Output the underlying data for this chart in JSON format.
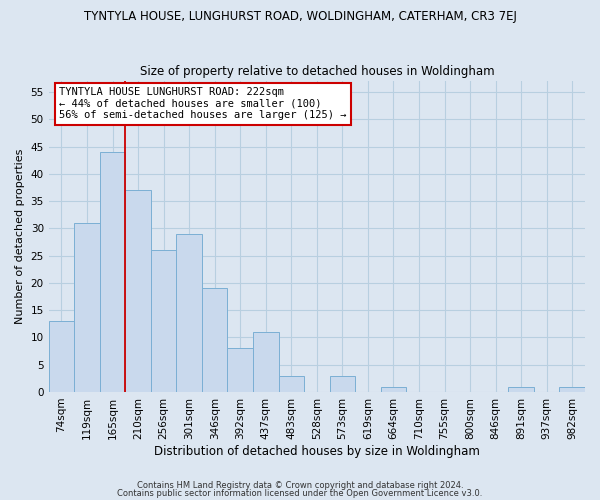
{
  "title": "TYNTYLA HOUSE, LUNGHURST ROAD, WOLDINGHAM, CATERHAM, CR3 7EJ",
  "subtitle": "Size of property relative to detached houses in Woldingham",
  "xlabel": "Distribution of detached houses by size in Woldingham",
  "ylabel": "Number of detached properties",
  "bin_labels": [
    "74sqm",
    "119sqm",
    "165sqm",
    "210sqm",
    "256sqm",
    "301sqm",
    "346sqm",
    "392sqm",
    "437sqm",
    "483sqm",
    "528sqm",
    "573sqm",
    "619sqm",
    "664sqm",
    "710sqm",
    "755sqm",
    "800sqm",
    "846sqm",
    "891sqm",
    "937sqm",
    "982sqm"
  ],
  "bar_values": [
    13,
    31,
    44,
    37,
    26,
    29,
    19,
    8,
    11,
    3,
    0,
    3,
    0,
    1,
    0,
    0,
    0,
    0,
    1,
    0,
    1
  ],
  "bar_color": "#c9d9ed",
  "bar_edge_color": "#7bafd4",
  "ref_line_x": 2.5,
  "ref_line_color": "#cc0000",
  "ylim": [
    0,
    57
  ],
  "yticks": [
    0,
    5,
    10,
    15,
    20,
    25,
    30,
    35,
    40,
    45,
    50,
    55
  ],
  "annotation_title": "TYNTYLA HOUSE LUNGHURST ROAD: 222sqm",
  "annotation_line1": "← 44% of detached houses are smaller (100)",
  "annotation_line2": "56% of semi-detached houses are larger (125) →",
  "footnote1": "Contains HM Land Registry data © Crown copyright and database right 2024.",
  "footnote2": "Contains public sector information licensed under the Open Government Licence v3.0.",
  "bg_color": "#dce6f1",
  "plot_bg_color": "#dce6f1",
  "grid_color": "#b8cfe0"
}
